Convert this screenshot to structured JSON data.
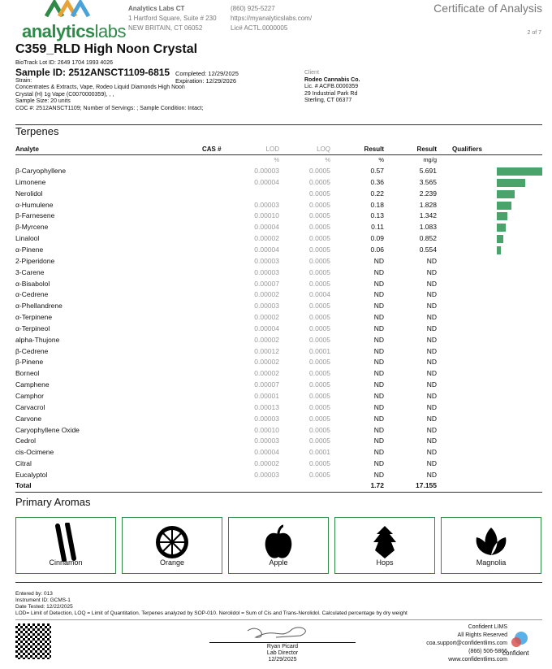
{
  "header": {
    "logo_text_bold": "analytics",
    "logo_text_light": "labs",
    "lab_name": "Analytics Labs CT",
    "address1": "1 Hartford Square, Suite # 230",
    "address2": "NEW BRITAIN, CT 06052",
    "phone": "(860) 925-5227",
    "website": "https://myanalyticslabs.com/",
    "license": "Lic# ACTL.0000005",
    "doc_title": "Certificate of Analysis",
    "page": "2 of 7"
  },
  "sample": {
    "title": "C359_RLD High Noon Crystal",
    "biotrack": "BioTrack Lot ID: 2649 1704 1993 4026",
    "sample_id": "Sample ID: 2512ANSCT1109-6815",
    "strain": "Strain:",
    "description": "Concentrates & Extracts, Vape, Rodeo Liquid Diamonds High Noon Crystal (H) 1g Vape (C0070000359), , ,",
    "size": "Sample Size: 20 units",
    "coc": "COC #: 2512ANSCT1109; Number of Servings: ; Sample Condition: Intact;",
    "completed": "Completed: 12/29/2025",
    "expiration": "Expiration: 12/29/2026"
  },
  "client": {
    "label": "Client",
    "name": "Rodeo Cannabis Co.",
    "license": "Lic. # ACFB.0000359",
    "address1": "29 Industrial Park Rd",
    "address2": "Sterling, CT 06377"
  },
  "terpenes": {
    "section_title": "Terpenes",
    "headers": {
      "analyte": "Analyte",
      "cas": "CAS #",
      "lod": "LOD",
      "loq": "LOQ",
      "result_pct": "Result",
      "result_mg": "Result",
      "qualifiers": "Qualifiers"
    },
    "units": {
      "lod": "%",
      "loq": "%",
      "result_pct": "%",
      "result_mg": "mg/g"
    },
    "bar_color": "#4aa36a",
    "rows": [
      [
        "β-Caryophyllene",
        "0.00003",
        "0.0005",
        "0.57",
        "5.691"
      ],
      [
        "Limonene",
        "0.00004",
        "0.0005",
        "0.36",
        "3.565"
      ],
      [
        "Nerolidol",
        "",
        "0.0005",
        "0.22",
        "2.239"
      ],
      [
        "α-Humulene",
        "0.00003",
        "0.0005",
        "0.18",
        "1.828"
      ],
      [
        "β-Farnesene",
        "0.00010",
        "0.0005",
        "0.13",
        "1.342"
      ],
      [
        "β-Myrcene",
        "0.00004",
        "0.0005",
        "0.11",
        "1.083"
      ],
      [
        "Linalool",
        "0.00002",
        "0.0005",
        "0.09",
        "0.852"
      ],
      [
        "α-Pinene",
        "0.00004",
        "0.0005",
        "0.06",
        "0.554"
      ],
      [
        "2-Piperidone",
        "0.00003",
        "0.0005",
        "ND",
        "ND"
      ],
      [
        "3-Carene",
        "0.00003",
        "0.0005",
        "ND",
        "ND"
      ],
      [
        "α-Bisabolol",
        "0.00007",
        "0.0005",
        "ND",
        "ND"
      ],
      [
        "α-Cedrene",
        "0.00002",
        "0.0004",
        "ND",
        "ND"
      ],
      [
        "α-Phellandrene",
        "0.00003",
        "0.0005",
        "ND",
        "ND"
      ],
      [
        "α-Terpinene",
        "0.00002",
        "0.0005",
        "ND",
        "ND"
      ],
      [
        "α-Terpineol",
        "0.00004",
        "0.0005",
        "ND",
        "ND"
      ],
      [
        "alpha-Thujone",
        "0.00002",
        "0.0005",
        "ND",
        "ND"
      ],
      [
        "β-Cedrene",
        "0.00012",
        "0.0001",
        "ND",
        "ND"
      ],
      [
        "β-Pinene",
        "0.00002",
        "0.0005",
        "ND",
        "ND"
      ],
      [
        "Borneol",
        "0.00002",
        "0.0005",
        "ND",
        "ND"
      ],
      [
        "Camphene",
        "0.00007",
        "0.0005",
        "ND",
        "ND"
      ],
      [
        "Camphor",
        "0.00001",
        "0.0005",
        "ND",
        "ND"
      ],
      [
        "Carvacrol",
        "0.00013",
        "0.0005",
        "ND",
        "ND"
      ],
      [
        "Carvone",
        "0.00003",
        "0.0005",
        "ND",
        "ND"
      ],
      [
        "Caryophyllene Oxide",
        "0.00010",
        "0.0005",
        "ND",
        "ND"
      ],
      [
        "Cedrol",
        "0.00003",
        "0.0005",
        "ND",
        "ND"
      ],
      [
        "cis-Ocimene",
        "0.00004",
        "0.0001",
        "ND",
        "ND"
      ],
      [
        "Citral",
        "0.00002",
        "0.0005",
        "ND",
        "ND"
      ],
      [
        "Eucalyptol",
        "0.00003",
        "0.0005",
        "ND",
        "ND"
      ]
    ],
    "total": {
      "label": "Total",
      "pct": "1.72",
      "mg": "17.155"
    }
  },
  "aromas": {
    "section_title": "Primary Aromas",
    "items": [
      {
        "label": "Cinnamon",
        "icon": "cinnamon-icon"
      },
      {
        "label": "Orange",
        "icon": "orange-icon"
      },
      {
        "label": "Apple",
        "icon": "apple-icon"
      },
      {
        "label": "Hops",
        "icon": "hops-icon"
      },
      {
        "label": "Magnolia",
        "icon": "magnolia-icon"
      }
    ]
  },
  "footer": {
    "entered_by": "Entered by: 013",
    "instrument": "Instrument ID: GCMS-1",
    "date_tested": "Date Tested: 12/22/2025",
    "note": "LOD= Limit of Detection, LOQ = Limit of Quantitation. Terpenes analyzed by SOP-010. Nerolidol = Sum of Cis and Trans-Nerolidol. Calculated percentage by dry weight",
    "signer": "Ryan Picard",
    "signer_title": "Lab Director",
    "sign_date": "12/29/2025",
    "lims_name": "Confident LIMS",
    "lims_rights": "All Rights Reserved",
    "lims_email": "coa.support@confidentlims.com",
    "lims_phone": "(866) 506-5866",
    "lims_web": "www.confidentlims.com",
    "lims_logo_text": "confident"
  }
}
